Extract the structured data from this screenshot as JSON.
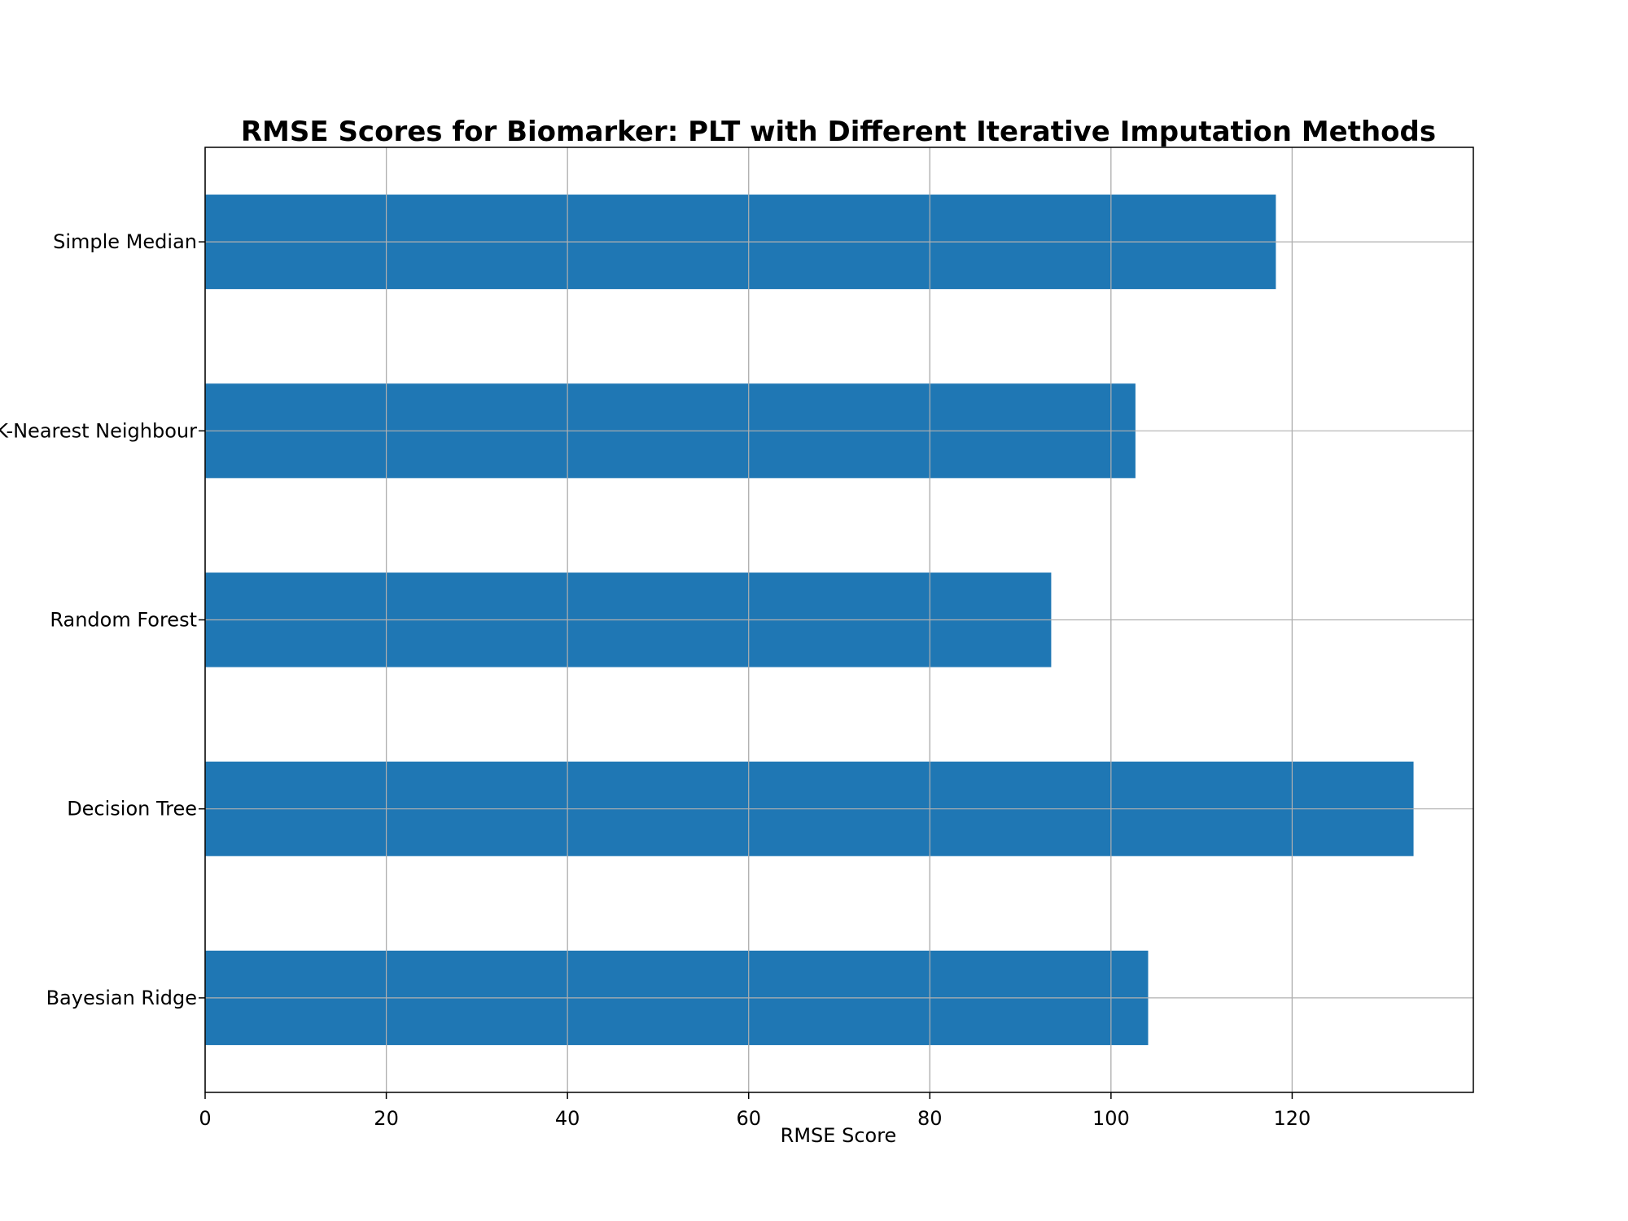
{
  "chart_data": {
    "type": "bar",
    "orientation": "horizontal",
    "title": "RMSE Scores for Biomarker: PLT with Different Iterative Imputation Methods",
    "xlabel": "RMSE Score",
    "ylabel": "",
    "categories": [
      "Simple Median",
      "K-Nearest Neighbour",
      "Random Forest",
      "Decision Tree",
      "Bayesian Ridge"
    ],
    "values": [
      118.2,
      102.7,
      93.4,
      133.4,
      104.1
    ],
    "xlim": [
      0,
      140
    ],
    "x_ticks": [
      0,
      20,
      40,
      60,
      80,
      100,
      120
    ],
    "grid": true,
    "bar_color": "#1f77b4",
    "grid_color": "#b0b0b0"
  }
}
